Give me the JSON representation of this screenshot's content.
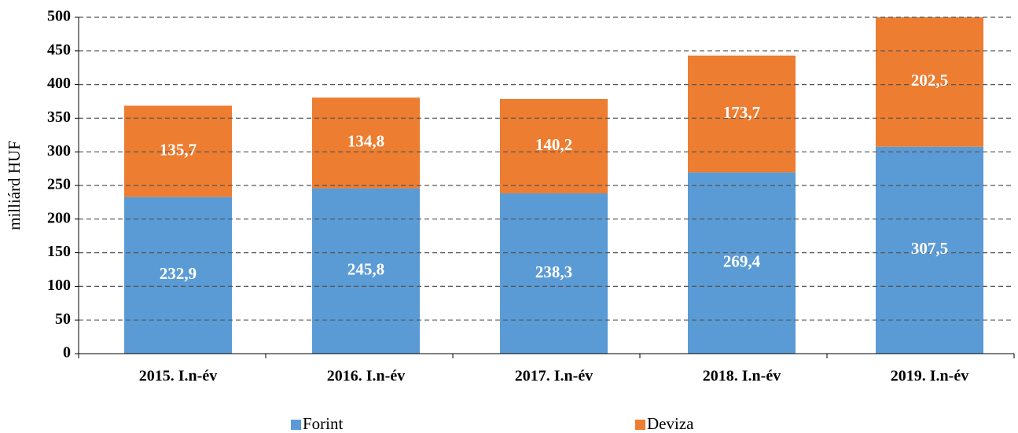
{
  "chart_data": {
    "type": "stacked_bar",
    "ylabel": "milliárd HUF",
    "categories": [
      "2015. I.n-év",
      "2016. I.n-év",
      "2017. I.n-év",
      "2018. I.n-év",
      "2019. I.n-év"
    ],
    "series": [
      {
        "name": "Forint",
        "color": "#5b9bd5",
        "values": [
          232.9,
          245.8,
          238.3,
          269.4,
          307.5
        ],
        "value_labels": [
          "232,9",
          "245,8",
          "238,3",
          "269,4",
          "307,5"
        ]
      },
      {
        "name": "Deviza",
        "color": "#ed7d31",
        "values": [
          135.7,
          134.8,
          140.2,
          173.7,
          202.5
        ],
        "value_labels": [
          "135,7",
          "134,8",
          "140,2",
          "173,7",
          "202,5"
        ]
      }
    ],
    "ylim": [
      0,
      500
    ],
    "yticks": [
      0,
      50,
      100,
      150,
      200,
      250,
      300,
      350,
      400,
      450,
      500
    ],
    "grid": true,
    "legend": "bottom"
  }
}
